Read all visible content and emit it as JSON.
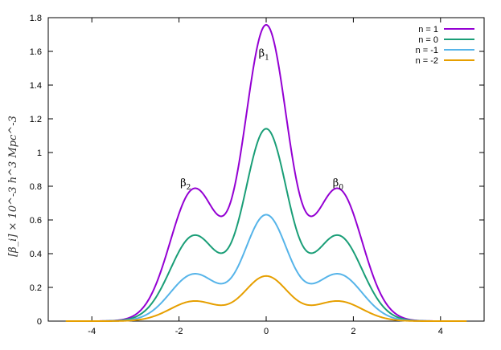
{
  "chart_data": {
    "type": "line",
    "title": "",
    "xlabel": "",
    "ylabel": "[β_i] × 10^-3 h^3 Mpc^-3",
    "xlim": [
      -5,
      5
    ],
    "ylim": [
      0,
      1.8
    ],
    "xticks": [
      -4,
      -2,
      0,
      2,
      4
    ],
    "xtick_labels": [
      "-4",
      "-2",
      "0",
      "2",
      "4"
    ],
    "yticks": [
      0,
      0.2,
      0.4,
      0.6,
      0.8,
      1,
      1.2,
      1.4,
      1.6,
      1.8
    ],
    "ytick_labels": [
      "0",
      "0.2",
      "0.4",
      "0.6",
      "0.8",
      "1",
      "1.2",
      "1.4",
      "1.6",
      "1.8"
    ],
    "grid": false,
    "legend_position": "top-right",
    "annotations": [
      {
        "base": "β",
        "sub": "2",
        "x": -1.85,
        "y": 0.8
      },
      {
        "base": "β",
        "sub": "1",
        "x": -0.05,
        "y": 1.57
      },
      {
        "base": "β",
        "sub": "0",
        "x": 1.65,
        "y": 0.8
      }
    ],
    "series": [
      {
        "name": "n = 1",
        "color": "#9400d3",
        "peak_center": 1.74,
        "peak_sides": 0.78
      },
      {
        "name": "n = 0",
        "color": "#1a9e77",
        "peak_center": 1.13,
        "peak_sides": 0.505
      },
      {
        "name": "n = -1",
        "color": "#56b4e9",
        "peak_center": 0.625,
        "peak_sides": 0.278
      },
      {
        "name": "n = -2",
        "color": "#e69f00",
        "peak_center": 0.265,
        "peak_sides": 0.118
      }
    ]
  }
}
